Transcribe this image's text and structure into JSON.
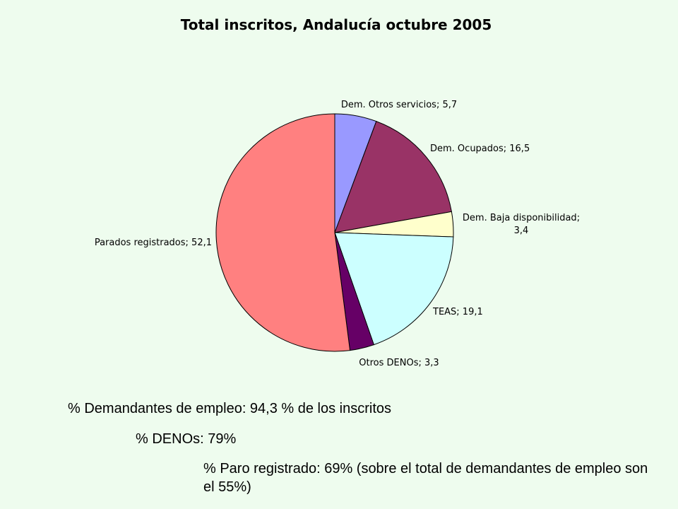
{
  "chart_data": {
    "type": "pie",
    "title": "Total inscritos, Andalucía octubre 2005",
    "start_angle_deg": 0,
    "direction": "clockwise",
    "slices": [
      {
        "label": "Dem. Otros servicios; 5,7",
        "value": 5.7,
        "color": "#9999ff"
      },
      {
        "label": "Dem. Ocupados; 16,5",
        "value": 16.5,
        "color": "#993366"
      },
      {
        "label": "Dem. Baja disponibilidad; 3,4",
        "label_lines": [
          "Dem. Baja disponibilidad;",
          "3,4"
        ],
        "value": 3.4,
        "color": "#ffffcc"
      },
      {
        "label": "TEAS; 19,1",
        "value": 19.1,
        "color": "#ccffff"
      },
      {
        "label": "Otros DENOs; 3,3",
        "value": 3.3,
        "color": "#660066"
      },
      {
        "label": "Parados registrados; 52,1",
        "value": 52.1,
        "color": "#ff8080"
      }
    ]
  },
  "notes": {
    "line1": "% Demandantes de empleo: 94,3 % de los inscritos",
    "line2": "% DENOs: 79%",
    "line3": "% Paro registrado:  69% (sobre el total de demandantes de empleo son el 55%)"
  }
}
